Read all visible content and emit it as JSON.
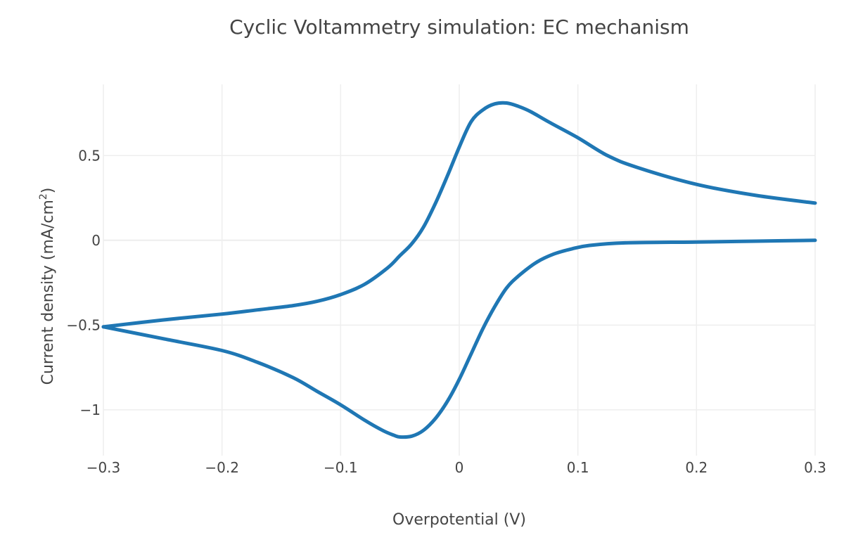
{
  "chart_data": {
    "type": "line",
    "title": "Cyclic Voltammetry simulation: EC mechanism",
    "xlabel": "Overpotential (V)",
    "ylabel_prefix": "Current density (mA/cm",
    "ylabel_sup": "2",
    "ylabel_suffix": ")",
    "xlim": [
      -0.3,
      0.3
    ],
    "ylim": [
      -1.27,
      0.92
    ],
    "x_ticks": [
      {
        "value": -0.3,
        "label": "−0.3"
      },
      {
        "value": -0.2,
        "label": "−0.2"
      },
      {
        "value": -0.1,
        "label": "−0.1"
      },
      {
        "value": 0,
        "label": "0"
      },
      {
        "value": 0.1,
        "label": "0.1"
      },
      {
        "value": 0.2,
        "label": "0.2"
      },
      {
        "value": 0.3,
        "label": "0.3"
      }
    ],
    "y_ticks": [
      {
        "value": -1,
        "label": "−1"
      },
      {
        "value": -0.5,
        "label": "−0.5"
      },
      {
        "value": 0,
        "label": "0"
      },
      {
        "value": 0.5,
        "label": "0.5"
      }
    ],
    "grid": true,
    "legend": "none",
    "color": "#1f77b4",
    "series": [
      {
        "x": [
          0.3,
          0.25,
          0.2,
          0.15,
          0.125,
          0.1,
          0.075,
          0.06,
          0.05,
          0.04,
          0.03,
          0.02,
          0.01,
          0.0,
          -0.01,
          -0.02,
          -0.03,
          -0.04,
          -0.05,
          -0.06,
          -0.08,
          -0.1,
          -0.12,
          -0.14,
          -0.17,
          -0.2,
          -0.25,
          -0.3
        ],
        "y": [
          0.22,
          0.265,
          0.33,
          0.43,
          0.5,
          0.605,
          0.7,
          0.76,
          0.79,
          0.81,
          0.805,
          0.77,
          0.7,
          0.55,
          0.38,
          0.22,
          0.08,
          -0.02,
          -0.09,
          -0.16,
          -0.26,
          -0.32,
          -0.36,
          -0.385,
          -0.41,
          -0.435,
          -0.47,
          -0.51
        ]
      },
      {
        "x": [
          -0.3,
          -0.25,
          -0.2,
          -0.17,
          -0.14,
          -0.12,
          -0.1,
          -0.08,
          -0.065,
          -0.055,
          -0.05,
          -0.04,
          -0.03,
          -0.02,
          -0.01,
          0.0,
          0.01,
          0.02,
          0.03,
          0.04,
          0.05,
          0.065,
          0.08,
          0.095,
          0.11,
          0.14,
          0.2,
          0.25,
          0.3
        ],
        "y": [
          -0.51,
          -0.58,
          -0.65,
          -0.72,
          -0.81,
          -0.89,
          -0.97,
          -1.06,
          -1.12,
          -1.15,
          -1.16,
          -1.155,
          -1.12,
          -1.05,
          -0.95,
          -0.82,
          -0.67,
          -0.52,
          -0.39,
          -0.28,
          -0.21,
          -0.13,
          -0.08,
          -0.05,
          -0.03,
          -0.015,
          -0.01,
          -0.005,
          0.0
        ]
      }
    ]
  }
}
